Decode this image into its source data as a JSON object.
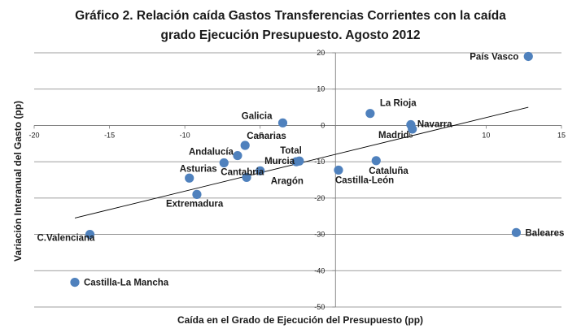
{
  "chart_data": {
    "type": "scatter",
    "title_lines": [
      "Gráfico 2. Relación caída Gastos Transferencias Corrientes con la caída",
      "grado Ejecución Presupuesto. Agosto 2012"
    ],
    "xlabel": "Caída en el Grado de Ejecución del Presupuesto (pp)",
    "ylabel": "Variación Interanual del Gasto (pp)",
    "xlim": [
      -20,
      15
    ],
    "ylim": [
      -50,
      20
    ],
    "xticks": [
      -20,
      -15,
      -10,
      -5,
      0,
      5,
      10,
      15
    ],
    "yticks": [
      -50,
      -40,
      -30,
      -20,
      -10,
      0,
      10,
      20
    ],
    "grid": "horizontal",
    "marker_color": "#4f81bd",
    "trendline": {
      "type": "linear",
      "from": [
        -17.3,
        -25.5
      ],
      "to": [
        12.8,
        5
      ]
    },
    "points": [
      {
        "label": "País Vasco",
        "x": 12.8,
        "y": 19
      },
      {
        "label": "La Rioja",
        "x": 2.3,
        "y": 3.3
      },
      {
        "label": "Galicia",
        "x": -3.5,
        "y": 0.7
      },
      {
        "label": "Navarra",
        "x": 5.0,
        "y": 0.2
      },
      {
        "label": "Madrid",
        "x": 5.1,
        "y": -1.0
      },
      {
        "label": "Canarias",
        "x": -6.0,
        "y": -5.5
      },
      {
        "label": "Andalucía",
        "x": -6.5,
        "y": -8.3
      },
      {
        "label": "Total",
        "x": -2.4,
        "y": -9.8
      },
      {
        "label": "Murcia",
        "x": -2.6,
        "y": -10.0
      },
      {
        "label": "Cataluña",
        "x": 2.7,
        "y": -9.7
      },
      {
        "label": "Cantabria",
        "x": -7.4,
        "y": -10.3
      },
      {
        "label": "Aragón",
        "x": -5.0,
        "y": -12.5
      },
      {
        "label": "Castilla-León",
        "x": 0.2,
        "y": -12.3
      },
      {
        "label": "Asturias",
        "x": -9.7,
        "y": -14.5
      },
      {
        "label": "",
        "x": -5.9,
        "y": -14.3
      },
      {
        "label": "Extremadura",
        "x": -9.2,
        "y": -19.0
      },
      {
        "label": "C.Valenciana",
        "x": -16.3,
        "y": -30.0
      },
      {
        "label": "Baleares",
        "x": 12.0,
        "y": -29.5
      },
      {
        "label": "Castilla-La Mancha",
        "x": -17.3,
        "y": -43.2
      }
    ]
  }
}
